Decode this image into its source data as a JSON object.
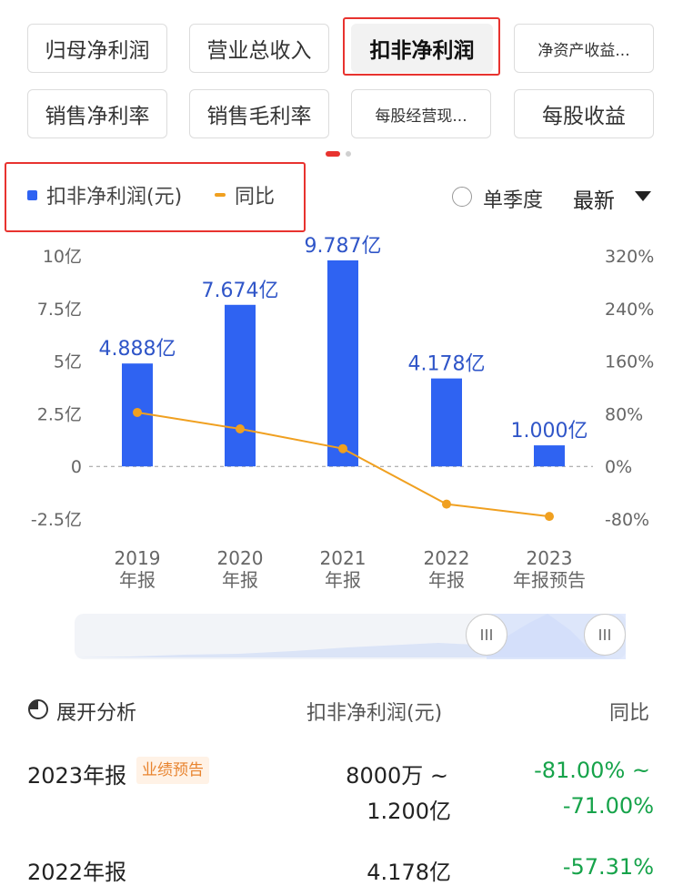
{
  "tabs": [
    {
      "label": "归母净利润",
      "active": false
    },
    {
      "label": "营业总收入",
      "active": false
    },
    {
      "label": "扣非净利润",
      "active": true
    },
    {
      "label": "净资产收益...",
      "active": false
    },
    {
      "label": "销售净利率",
      "active": false
    },
    {
      "label": "销售毛利率",
      "active": false
    },
    {
      "label": "每股经营现...",
      "active": false
    },
    {
      "label": "每股收益",
      "active": false
    }
  ],
  "controls": {
    "single_quarter": "单季度",
    "sort": "最新",
    "single_quarter_checked": false
  },
  "colors": {
    "bar": "#2f63f2",
    "line": "#f0a020",
    "positive": "#16a34a",
    "highlight": "#e8332f"
  },
  "chart_data": {
    "type": "bar",
    "categories": [
      "2019\n年报",
      "2020\n年报",
      "2021\n年报",
      "2022\n年报",
      "2023\n年报预告"
    ],
    "series": [
      {
        "name": "扣非净利润(元)",
        "type": "bar",
        "axis": "left",
        "values": [
          4.888,
          7.674,
          9.787,
          4.178,
          1.0
        ],
        "labels": [
          "4.888亿",
          "7.674亿",
          "9.787亿",
          "4.178亿",
          "1.000亿"
        ]
      },
      {
        "name": "同比",
        "type": "line",
        "axis": "right",
        "values": [
          82,
          57,
          27,
          -57.31,
          -76
        ]
      }
    ],
    "left_axis": {
      "min": -2.5,
      "max": 10,
      "ticks": [
        10,
        7.5,
        5,
        2.5,
        0,
        -2.5
      ],
      "tick_labels": [
        "10亿",
        "7.5亿",
        "5亿",
        "2.5亿",
        "0",
        "-2.5亿"
      ]
    },
    "right_axis": {
      "min": -80,
      "max": 320,
      "ticks": [
        320,
        240,
        160,
        80,
        0,
        -80
      ],
      "tick_labels": [
        "320%",
        "240%",
        "160%",
        "80%",
        "0%",
        "-80%"
      ]
    },
    "legend_placement": "top-left",
    "zero_line_dashed": true
  },
  "table": {
    "expand_label": "展开分析",
    "col_value": "扣非净利润(元)",
    "col_yoy": "同比",
    "rows": [
      {
        "year": "2023年报",
        "badge": "业绩预告",
        "value_line1": "8000万 ~",
        "value_line2": "1.200亿",
        "yoy_line1": "-81.00% ~",
        "yoy_line2": "-71.00%"
      },
      {
        "year": "2022年报",
        "value_line1": "4.178亿",
        "yoy_line1": "-57.31%"
      }
    ]
  }
}
